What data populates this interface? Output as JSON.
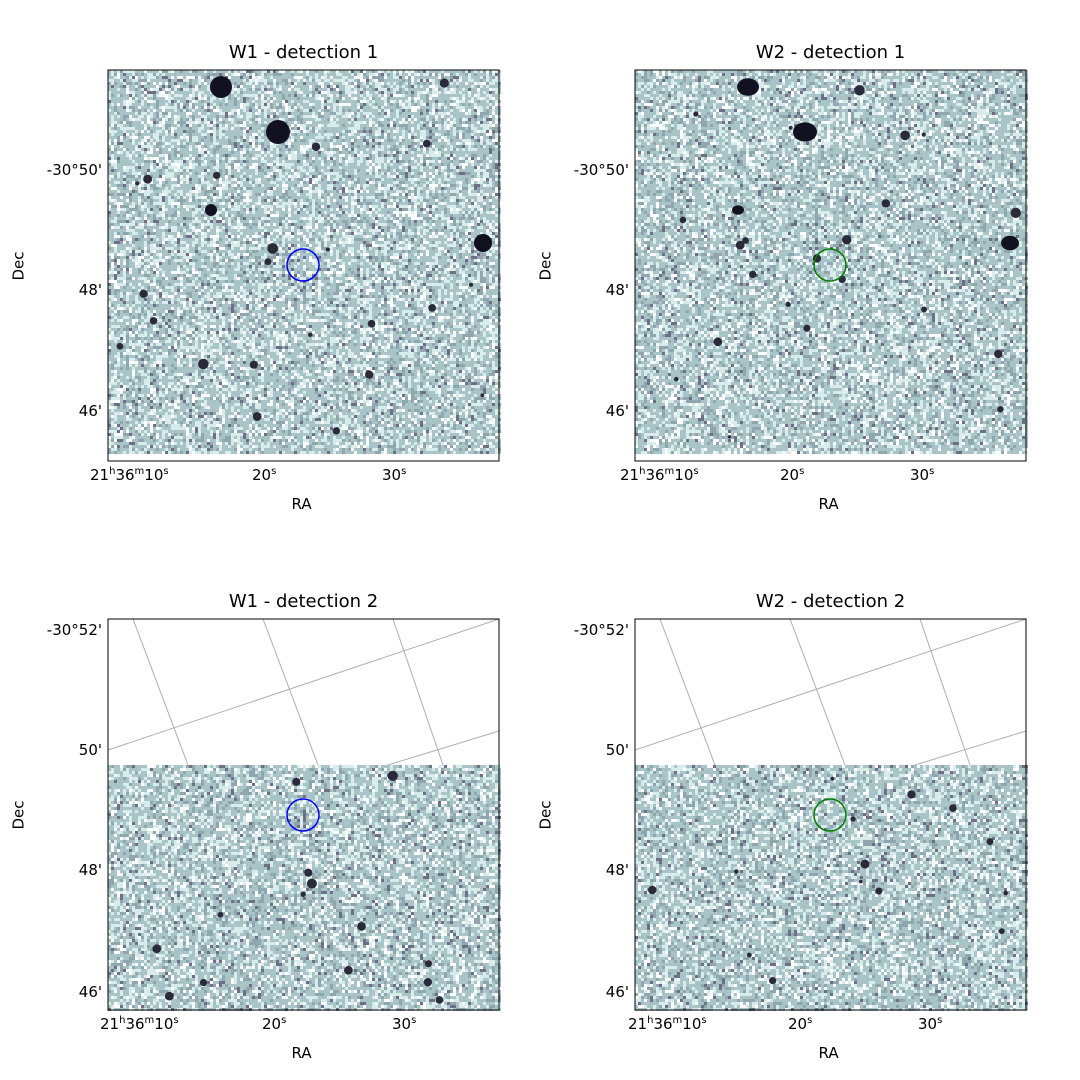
{
  "figure": {
    "panels": [
      {
        "id": "w1-det1",
        "title": "W1 - detection 1",
        "xlabel": "RA",
        "ylabel": "Dec",
        "yticks": [
          "-30°50'",
          "48'",
          "46'"
        ],
        "xticks": [
          {
            "h": "21",
            "hu": "h",
            "m": "36",
            "mu": "m",
            "s": "10",
            "su": "s"
          },
          {
            "s": "20",
            "su": "s"
          },
          {
            "s": "30",
            "su": "s"
          }
        ],
        "marker_color": "#0000ff",
        "blank_top": false
      },
      {
        "id": "w2-det1",
        "title": "W2 - detection 1",
        "xlabel": "RA",
        "ylabel": "Dec",
        "yticks": [
          "-30°50'",
          "48'",
          "46'"
        ],
        "xticks": [
          {
            "h": "21",
            "hu": "h",
            "m": "36",
            "mu": "m",
            "s": "10",
            "su": "s"
          },
          {
            "s": "20",
            "su": "s"
          },
          {
            "s": "30",
            "su": "s"
          }
        ],
        "marker_color": "#008000",
        "blank_top": false
      },
      {
        "id": "w1-det2",
        "title": "W1 - detection 2",
        "xlabel": "RA",
        "ylabel": "Dec",
        "yticks": [
          "-30°52'",
          "50'",
          "48'",
          "46'"
        ],
        "xticks": [
          {
            "h": "21",
            "hu": "h",
            "m": "36",
            "mu": "m",
            "s": "10",
            "su": "s"
          },
          {
            "s": "20",
            "su": "s"
          },
          {
            "s": "30",
            "su": "s"
          }
        ],
        "marker_color": "#0000ff",
        "blank_top": true
      },
      {
        "id": "w2-det2",
        "title": "W2 - detection 2",
        "xlabel": "RA",
        "ylabel": "Dec",
        "yticks": [
          "-30°52'",
          "50'",
          "48'",
          "46'"
        ],
        "xticks": [
          {
            "h": "21",
            "hu": "h",
            "m": "36",
            "mu": "m",
            "s": "10",
            "su": "s"
          },
          {
            "s": "20",
            "su": "s"
          },
          {
            "s": "30",
            "su": "s"
          }
        ],
        "marker_color": "#008000",
        "blank_top": true
      }
    ],
    "colors": {
      "image_base": "#a8c4c6",
      "image_light": "#d8eceb",
      "image_dark": "#2a2a3a",
      "grid": "#b0b0b0"
    }
  }
}
